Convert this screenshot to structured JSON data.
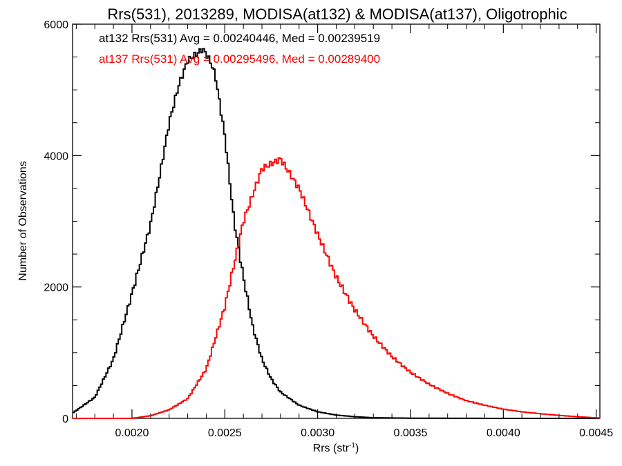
{
  "chart_data": {
    "type": "line",
    "title": "Rrs(531), 2013289, MODISA(at132) & MODISA(at137), Oligotrophic",
    "xlabel": "Rrs (str",
    "xlabel_sup": "-1",
    "xlabel_end": ")",
    "ylabel": "Number of Observations",
    "xlim": [
      0.00168,
      0.00452
    ],
    "ylim": [
      0,
      6000
    ],
    "x_ticks": [
      0.002,
      0.0025,
      0.003,
      0.0035,
      0.004,
      0.0045
    ],
    "x_tick_labels": [
      "0.0020",
      "0.0025",
      "0.0030",
      "0.0035",
      "0.0040",
      "0.0045"
    ],
    "y_ticks": [
      0,
      2000,
      4000,
      6000
    ],
    "y_tick_labels": [
      "0",
      "2000",
      "4000",
      "6000"
    ],
    "grid": false,
    "legend_placement": "top-left",
    "series": [
      {
        "name": "at132 Rrs(531) Avg = 0.00240446, Med = 0.00239519",
        "color": "#000000",
        "x": [
          0.00168,
          0.0018,
          0.0019,
          0.002,
          0.0021,
          0.00215,
          0.0022,
          0.00225,
          0.0023,
          0.00235,
          0.00238,
          0.0024,
          0.00243,
          0.00245,
          0.0025,
          0.00255,
          0.0026,
          0.00265,
          0.0027,
          0.00275,
          0.0028,
          0.0029,
          0.003,
          0.0031,
          0.0032,
          0.0033,
          0.0035,
          0.004,
          0.0045
        ],
        "y": [
          80,
          320,
          900,
          1900,
          2950,
          3700,
          4500,
          5050,
          5450,
          5550,
          5620,
          5550,
          5380,
          5200,
          4300,
          3000,
          2150,
          1400,
          900,
          600,
          400,
          200,
          100,
          50,
          25,
          10,
          3,
          0,
          0
        ]
      },
      {
        "name": "at137 Rrs(531) Avg = 0.00295496, Med = 0.00289400",
        "color": "#ff0000",
        "x": [
          0.00168,
          0.002,
          0.0021,
          0.0022,
          0.0023,
          0.0024,
          0.0025,
          0.0026,
          0.0027,
          0.0028,
          0.0029,
          0.003,
          0.0031,
          0.0032,
          0.0033,
          0.0034,
          0.0035,
          0.0036,
          0.0037,
          0.0038,
          0.0039,
          0.004,
          0.0041,
          0.0042,
          0.0043,
          0.0044,
          0.00452
        ],
        "y": [
          0,
          0,
          40,
          130,
          300,
          750,
          1700,
          3000,
          3800,
          3950,
          3500,
          2800,
          2150,
          1650,
          1250,
          940,
          700,
          520,
          380,
          270,
          200,
          140,
          100,
          70,
          45,
          25,
          5
        ]
      }
    ]
  }
}
